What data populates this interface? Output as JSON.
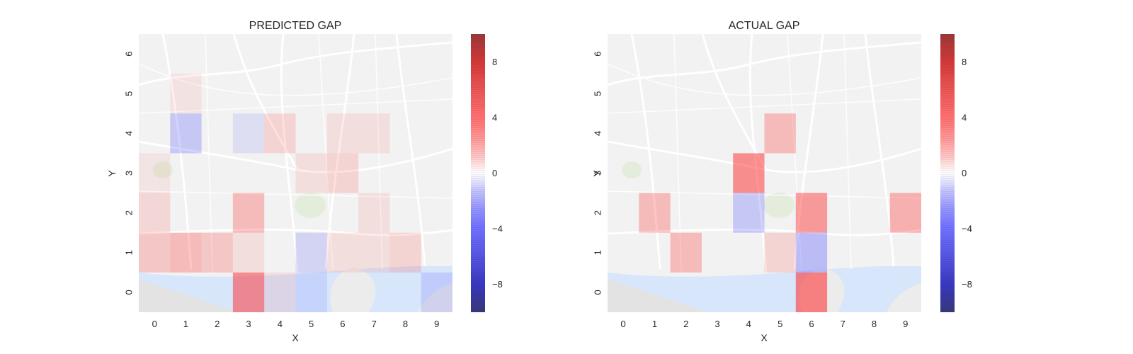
{
  "chart_data": [
    {
      "type": "heatmap",
      "title": "PREDICTED GAP",
      "xlabel": "X",
      "ylabel": "Y",
      "x_ticks": [
        "0",
        "1",
        "2",
        "3",
        "4",
        "5",
        "6",
        "7",
        "8",
        "9"
      ],
      "y_ticks": [
        "0",
        "1",
        "2",
        "3",
        "4",
        "5",
        "6"
      ],
      "xlim": [
        -0.5,
        9.5
      ],
      "ylim": [
        -0.5,
        6.5
      ],
      "colorbar": {
        "ticks": [
          -8,
          -4,
          0,
          4,
          8
        ],
        "tick_labels": [
          "−8",
          "−4",
          "0",
          "4",
          "8"
        ],
        "range": [
          -10,
          10
        ],
        "colormap": "seismic"
      },
      "cells": [
        {
          "x": 1,
          "y": 4,
          "value": -1.5
        },
        {
          "x": 3,
          "y": 4,
          "value": -0.5
        },
        {
          "x": 4,
          "y": 4,
          "value": 1.0
        },
        {
          "x": 6,
          "y": 4,
          "value": 0.5
        },
        {
          "x": 7,
          "y": 4,
          "value": 0.5
        },
        {
          "x": 1,
          "y": 5,
          "value": 0.3
        },
        {
          "x": 0,
          "y": 3,
          "value": 0.2
        },
        {
          "x": 6,
          "y": 3,
          "value": 1.0
        },
        {
          "x": 5,
          "y": 3,
          "value": 0.5
        },
        {
          "x": 0,
          "y": 2,
          "value": 0.8
        },
        {
          "x": 3,
          "y": 2,
          "value": 2.0
        },
        {
          "x": 7,
          "y": 2,
          "value": 0.5
        },
        {
          "x": 0,
          "y": 1,
          "value": 1.5
        },
        {
          "x": 1,
          "y": 1,
          "value": 2.0
        },
        {
          "x": 2,
          "y": 1,
          "value": 1.5
        },
        {
          "x": 3,
          "y": 1,
          "value": 0.5
        },
        {
          "x": 5,
          "y": 1,
          "value": -1.0
        },
        {
          "x": 6,
          "y": 1,
          "value": 0.5
        },
        {
          "x": 7,
          "y": 1,
          "value": 0.5
        },
        {
          "x": 8,
          "y": 1,
          "value": 1.0
        },
        {
          "x": 3,
          "y": 0,
          "value": 4.0
        },
        {
          "x": 4,
          "y": 0,
          "value": 0.5
        },
        {
          "x": 5,
          "y": 0,
          "value": -0.5
        },
        {
          "x": 9,
          "y": 0,
          "value": -0.8
        }
      ]
    },
    {
      "type": "heatmap",
      "title": "ACTUAL GAP",
      "xlabel": "X",
      "ylabel": "Y",
      "x_ticks": [
        "0",
        "1",
        "2",
        "3",
        "4",
        "5",
        "6",
        "7",
        "8",
        "9"
      ],
      "y_ticks": [
        "0",
        "1",
        "2",
        "3",
        "4",
        "5",
        "6"
      ],
      "xlim": [
        -0.5,
        9.5
      ],
      "ylim": [
        -0.5,
        6.5
      ],
      "colorbar": {
        "ticks": [
          -8,
          -4,
          0,
          4,
          8
        ],
        "tick_labels": [
          "−8",
          "−4",
          "0",
          "4",
          "8"
        ],
        "range": [
          -10,
          10
        ],
        "colormap": "seismic"
      },
      "cells": [
        {
          "x": 5,
          "y": 4,
          "value": 2.0
        },
        {
          "x": 4,
          "y": 3,
          "value": 4.0
        },
        {
          "x": 1,
          "y": 2,
          "value": 2.0
        },
        {
          "x": 4,
          "y": 2,
          "value": -1.5
        },
        {
          "x": 6,
          "y": 2,
          "value": 3.5
        },
        {
          "x": 9,
          "y": 2,
          "value": 2.5
        },
        {
          "x": 2,
          "y": 1,
          "value": 2.0
        },
        {
          "x": 5,
          "y": 1,
          "value": 1.0
        },
        {
          "x": 6,
          "y": 1,
          "value": -2.0
        },
        {
          "x": 6,
          "y": 0,
          "value": 4.5
        }
      ]
    }
  ]
}
